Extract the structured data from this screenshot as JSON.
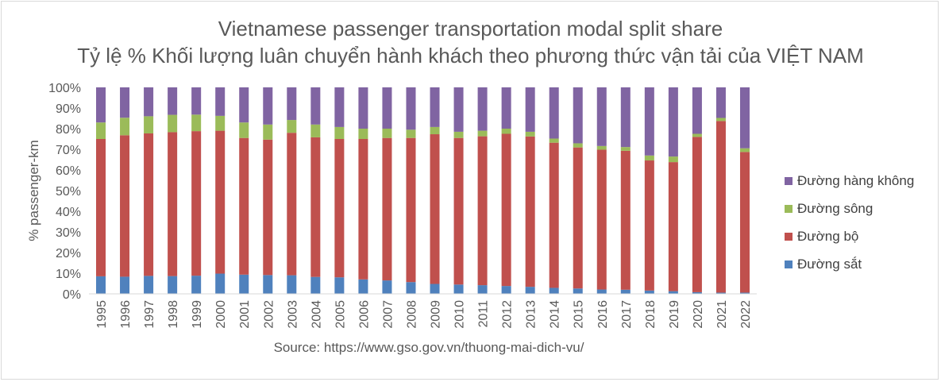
{
  "chart_data": {
    "type": "bar",
    "stacked": true,
    "title": "Vietnamese passenger transportation modal split share",
    "subtitle": "Tỷ lệ % Khối lượng luân chuyển hành khách theo phương thức vận tải của VIỆT NAM",
    "ylabel": "% passenger-km",
    "xlabel": "",
    "source": "Source: https://www.gso.gov.vn/thuong-mai-dich-vu/",
    "ylim": [
      0,
      100
    ],
    "yticks": [
      "0%",
      "10%",
      "20%",
      "30%",
      "40%",
      "50%",
      "60%",
      "70%",
      "80%",
      "90%",
      "100%"
    ],
    "legend_position": "right",
    "grid": false,
    "categories": [
      "1995",
      "1996",
      "1997",
      "1998",
      "1999",
      "2000",
      "2001",
      "2002",
      "2003",
      "2004",
      "2005",
      "2006",
      "2007",
      "2008",
      "2009",
      "2010",
      "2011",
      "2012",
      "2013",
      "2014",
      "2015",
      "2016",
      "2017",
      "2018",
      "2019",
      "2020",
      "2021",
      "2022"
    ],
    "series": [
      {
        "name": "Đường sắt",
        "color": "#4f81bd",
        "values": [
          8.5,
          8.3,
          8.7,
          8.6,
          8.8,
          9.8,
          9.3,
          9.1,
          9.0,
          8.2,
          8.0,
          7.0,
          6.5,
          5.7,
          4.8,
          4.5,
          4.2,
          3.8,
          3.4,
          2.9,
          2.6,
          2.1,
          2.0,
          1.6,
          1.3,
          0.8,
          0.6,
          0.6
        ]
      },
      {
        "name": "Đường bộ",
        "color": "#c0504d",
        "values": [
          66.5,
          68.5,
          69.0,
          69.7,
          70.0,
          69.2,
          66.2,
          65.6,
          69.0,
          67.6,
          67.0,
          68.0,
          69.0,
          69.8,
          72.5,
          71.0,
          72.1,
          73.7,
          72.8,
          70.3,
          68.3,
          67.7,
          67.3,
          63.0,
          62.5,
          75.2,
          83.1,
          68.1
        ]
      },
      {
        "name": "Đường sông",
        "color": "#9bbb59",
        "values": [
          8.0,
          8.5,
          8.3,
          8.4,
          8.0,
          7.2,
          7.5,
          7.3,
          6.2,
          6.2,
          5.8,
          5.0,
          4.5,
          4.0,
          3.5,
          3.0,
          2.7,
          2.5,
          2.3,
          2.0,
          2.0,
          1.8,
          1.8,
          2.4,
          2.7,
          1.5,
          1.5,
          1.8
        ]
      },
      {
        "name": "Đường hàng không",
        "color": "#8064a2",
        "values": [
          17.0,
          14.7,
          14.0,
          13.3,
          13.2,
          13.8,
          17.0,
          18.0,
          15.8,
          18.0,
          19.2,
          20.0,
          20.0,
          20.5,
          19.2,
          21.5,
          21.0,
          20.0,
          21.5,
          24.8,
          27.1,
          28.4,
          28.9,
          33.0,
          33.5,
          22.5,
          14.8,
          29.5
        ]
      }
    ]
  }
}
